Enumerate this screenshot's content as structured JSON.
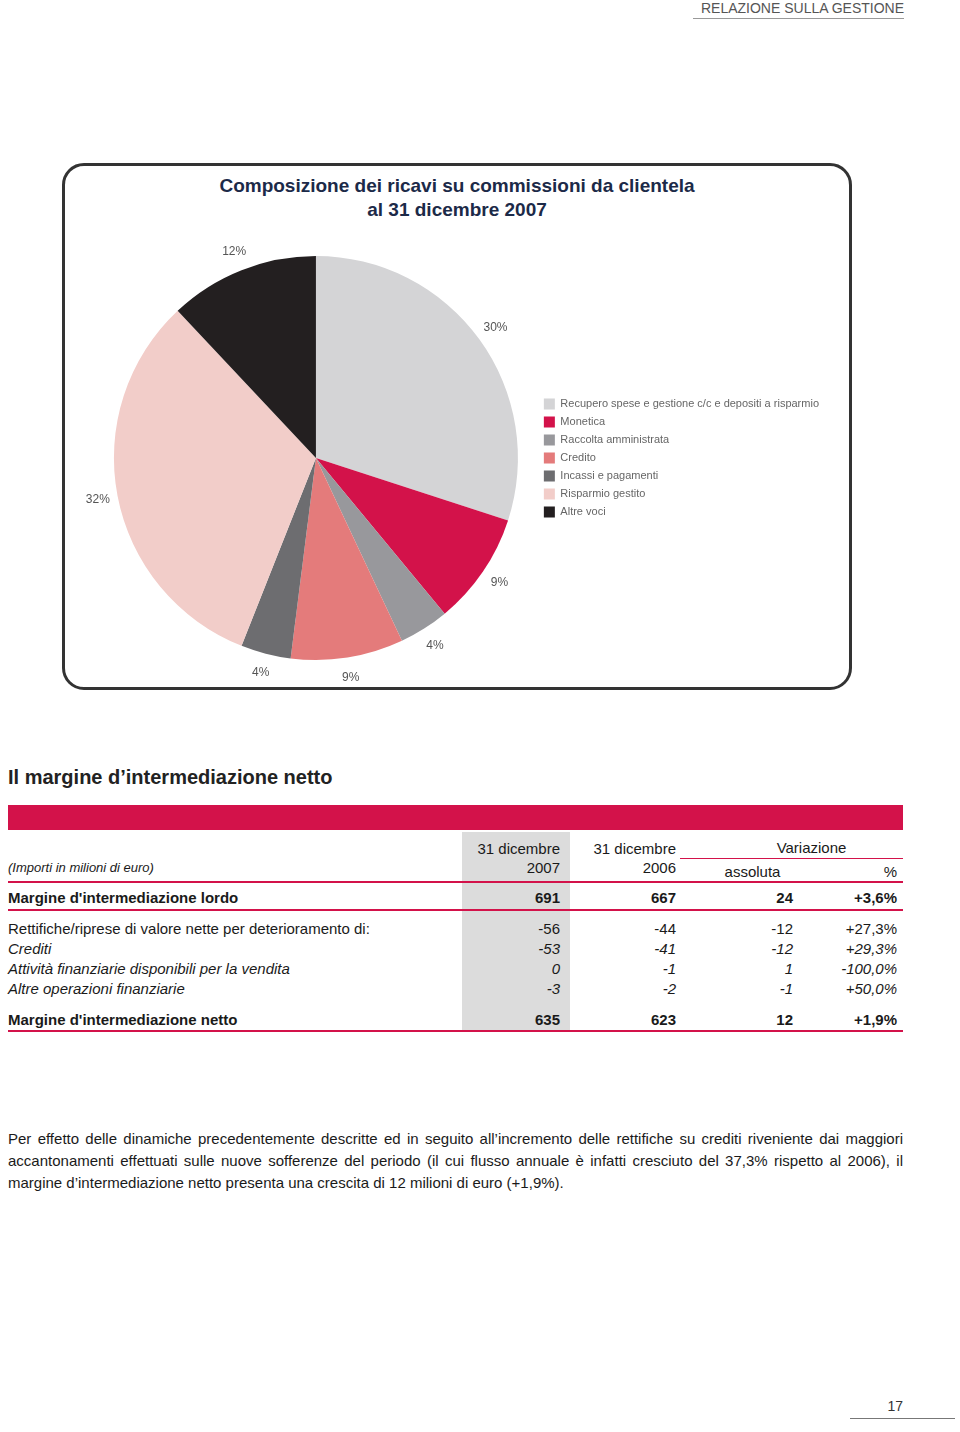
{
  "header": "RELAZIONE SULLA GESTIONE",
  "chart_data": {
    "type": "pie",
    "title": "Composizione dei ricavi su commissioni da clientela\nal 31 dicembre 2007",
    "categories": [
      "Recupero spese e gestione c/c e depositi a risparmio",
      "Monetica",
      "Raccolta amministrata",
      "Credito",
      "Incassi e pagamenti",
      "Risparmio gestito",
      "Altre voci"
    ],
    "values": [
      30,
      9,
      4,
      9,
      4,
      32,
      12
    ],
    "value_labels": [
      "30%",
      "9%",
      "4%",
      "9%",
      "4%",
      "32%",
      "12%"
    ],
    "colors": [
      "#d4d4d6",
      "#d3124a",
      "#98989c",
      "#e47b7b",
      "#6d6d70",
      "#f2cdc9",
      "#231f20"
    ],
    "data_labels": true,
    "legend": "right"
  },
  "section_title": "Il margine d’intermediazione netto",
  "table": {
    "unit_label": "(Importi in milioni di euro)",
    "columns": [
      "31 dicembre\n2007",
      "31 dicembre\n2006"
    ],
    "group": {
      "title": "Variazione",
      "columns": [
        "assoluta",
        "%"
      ]
    },
    "rows": [
      [
        "Margine d'intermediazione lordo",
        "691",
        "667",
        "24",
        "+3,6%"
      ],
      [
        "Rettifiche/riprese di valore nette per deterioramento di:",
        "-56",
        "-44",
        "-12",
        "+27,3%"
      ],
      [
        "Crediti",
        "-53",
        "-41",
        "-12",
        "+29,3%"
      ],
      [
        "Attività finanziarie disponibili per la vendita",
        "0",
        "-1",
        "1",
        "-100,0%"
      ],
      [
        "Altre operazioni finanziarie",
        "-3",
        "-2",
        "-1",
        "+50,0%"
      ],
      [
        "Margine d'intermediazione netto",
        "635",
        "623",
        "12",
        "+1,9%"
      ]
    ]
  },
  "paragraph": "Per effetto delle dinamiche precedentemente descritte ed in seguito all’incremento delle rettifiche su crediti riveniente dai maggiori accantonamenti effettuati sulle nuove sofferenze del periodo (il cui flusso annuale è infatti cresciuto del 37,3% rispetto al 2006), il margine d’intermediazione netto presenta una crescita di 12 milioni di euro (+1,9%).",
  "page_number": "17"
}
